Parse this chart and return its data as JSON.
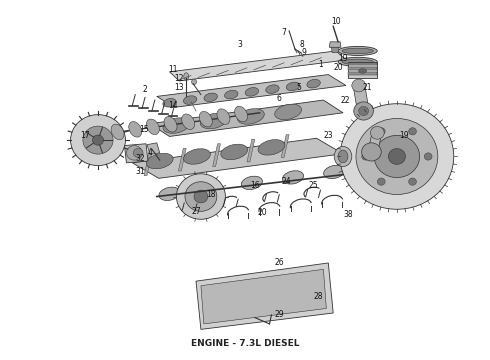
{
  "title": "ENGINE - 7.3L DIESEL",
  "title_fontsize": 6.5,
  "title_color": "#222222",
  "bg_color": "#ffffff",
  "fig_width": 4.9,
  "fig_height": 3.6,
  "dpi": 100,
  "ec": "#333333",
  "lw_main": 0.6,
  "lw_thin": 0.4,
  "fc_body": "#c8c8c8",
  "fc_light": "#e0e0e0",
  "fc_dark": "#a0a0a0",
  "fc_mid": "#b8b8b8"
}
